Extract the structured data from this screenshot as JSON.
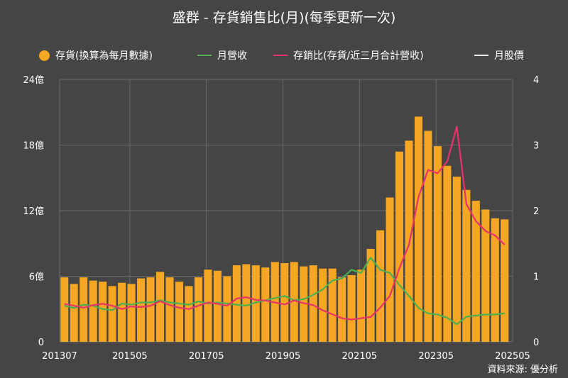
{
  "chart_data": {
    "type": "bar",
    "title": "盛群 - 存貨銷售比(月)(每季更新一次)",
    "source": "資料來源: 優分析",
    "colors": {
      "background": "#454545",
      "bar": "#F5A623",
      "revenue": "#4CAF50",
      "ratio": "#E8336A",
      "price": "#E6E6E6",
      "grid": "#6a6a6a",
      "text": "#FFFFFF"
    },
    "legend": [
      {
        "label": "存貨(換算為每月數據)",
        "marker": "dot",
        "color": "#F5A623"
      },
      {
        "label": "月營收",
        "marker": "line",
        "color": "#4CAF50"
      },
      {
        "label": "存銷比(存貨/近三月合計營收)",
        "marker": "line",
        "color": "#E8336A"
      },
      {
        "label": "月股價",
        "marker": "line",
        "color": "#E6E6E6"
      }
    ],
    "y_left": {
      "ticks": [
        "0",
        "6億",
        "12億",
        "18億",
        "24億"
      ],
      "range": [
        0,
        24
      ]
    },
    "y_right": {
      "ticks": [
        "0",
        "1",
        "2",
        "3",
        "4"
      ],
      "range": [
        0,
        4
      ]
    },
    "x_tick_labels": [
      "201307",
      "201505",
      "201705",
      "201905",
      "202105",
      "202305",
      "202505"
    ],
    "x_start": "201307",
    "quarters": [
      "2013Q3",
      "2013Q4",
      "2014Q1",
      "2014Q2",
      "2014Q3",
      "2014Q4",
      "2015Q1",
      "2015Q2",
      "2015Q3",
      "2015Q4",
      "2016Q1",
      "2016Q2",
      "2016Q3",
      "2016Q4",
      "2017Q1",
      "2017Q2",
      "2017Q3",
      "2017Q4",
      "2018Q1",
      "2018Q2",
      "2018Q3",
      "2018Q4",
      "2019Q1",
      "2019Q2",
      "2019Q3",
      "2019Q4",
      "2020Q1",
      "2020Q2",
      "2020Q3",
      "2020Q4",
      "2021Q1",
      "2021Q2",
      "2021Q3",
      "2021Q4",
      "2022Q1",
      "2022Q2",
      "2022Q3",
      "2022Q4",
      "2023Q1",
      "2023Q2",
      "2023Q3",
      "2023Q4",
      "2024Q1",
      "2024Q2",
      "2024Q3",
      "2024Q4",
      "2025Q1"
    ],
    "inventory_billion": [
      5.9,
      5.3,
      5.9,
      5.6,
      5.5,
      5.1,
      5.4,
      5.3,
      5.8,
      5.9,
      6.4,
      5.9,
      5.5,
      5.1,
      5.9,
      6.6,
      6.5,
      6.0,
      7.0,
      7.1,
      7.0,
      6.8,
      7.3,
      7.2,
      7.3,
      6.9,
      7.0,
      6.7,
      6.7,
      5.9,
      6.1,
      6.6,
      8.5,
      10.2,
      13.2,
      17.4,
      18.4,
      20.6,
      19.3,
      17.9,
      16.1,
      15.1,
      13.9,
      12.9,
      12.1,
      11.3,
      11.2
    ],
    "monthly_revenue_billion": [
      3.3,
      3.1,
      3.4,
      3.3,
      3.0,
      2.9,
      3.5,
      3.4,
      3.6,
      3.6,
      3.8,
      3.6,
      3.5,
      3.4,
      3.7,
      3.5,
      3.6,
      3.5,
      3.4,
      3.3,
      3.6,
      3.8,
      4.0,
      4.2,
      3.8,
      3.9,
      4.3,
      4.8,
      5.6,
      5.8,
      6.6,
      6.3,
      7.7,
      6.6,
      6.3,
      5.2,
      4.2,
      3.1,
      2.6,
      2.5,
      2.2,
      1.6,
      2.3,
      2.4,
      2.5,
      2.5,
      2.6
    ],
    "inventory_sales_ratio": [
      0.58,
      0.55,
      0.52,
      0.56,
      0.58,
      0.55,
      0.5,
      0.54,
      0.53,
      0.55,
      0.62,
      0.56,
      0.52,
      0.5,
      0.55,
      0.6,
      0.58,
      0.55,
      0.66,
      0.68,
      0.64,
      0.63,
      0.6,
      0.57,
      0.63,
      0.59,
      0.56,
      0.48,
      0.42,
      0.36,
      0.34,
      0.36,
      0.38,
      0.52,
      0.7,
      1.12,
      1.48,
      2.21,
      2.62,
      2.57,
      2.75,
      3.28,
      2.1,
      1.84,
      1.69,
      1.62,
      1.48
    ]
  }
}
